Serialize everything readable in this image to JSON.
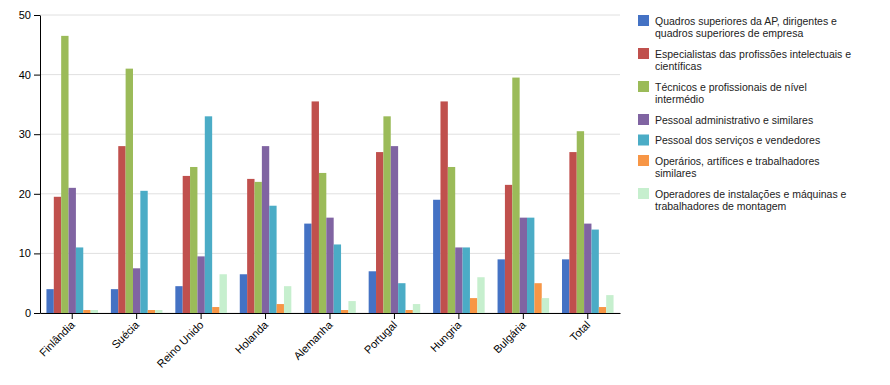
{
  "chart_data": {
    "type": "bar",
    "categories": [
      "Finlândia",
      "Suécia",
      "Reino Unido",
      "Holanda",
      "Alemanha",
      "Portugal",
      "Hungria",
      "Bulgária",
      "Total"
    ],
    "series": [
      {
        "name": "Quadros superiores da AP, dirigentes e\nquadros superiores de empresa",
        "color": "#4472C4",
        "values": [
          4,
          4,
          4.5,
          6.5,
          15,
          7,
          19,
          9,
          9
        ]
      },
      {
        "name": "Especialistas das profissões intelectuais e\ncientíficas",
        "color": "#C0504D",
        "values": [
          19.5,
          28,
          23,
          22.5,
          35.5,
          27,
          35.5,
          21.5,
          27
        ]
      },
      {
        "name": "Técnicos e profissionais de nível\nintermédio",
        "color": "#9BBB59",
        "values": [
          46.5,
          41,
          24.5,
          22,
          23.5,
          33,
          24.5,
          39.5,
          30.5
        ]
      },
      {
        "name": "Pessoal administrativo e similares",
        "color": "#8064A2",
        "values": [
          21,
          7.5,
          9.5,
          28,
          16,
          28,
          11,
          16,
          15
        ]
      },
      {
        "name": "Pessoal dos serviços e vendedores",
        "color": "#4BACC6",
        "values": [
          11,
          20.5,
          33,
          18,
          11.5,
          5,
          11,
          16,
          14
        ]
      },
      {
        "name": "Operários, artífices e trabalhadores\nsimilares",
        "color": "#F79646",
        "values": [
          0.5,
          0.5,
          1,
          1.5,
          0.5,
          0.5,
          2.5,
          5,
          1
        ]
      },
      {
        "name": "Operadores de instalações e máquinas e\ntrabalhadores de montagem",
        "color": "#C6EFCE",
        "values": [
          0.5,
          0.5,
          6.5,
          4.5,
          2,
          1.5,
          6,
          2.5,
          3
        ]
      }
    ],
    "ylim": [
      0,
      50
    ],
    "yticks": [
      0,
      10,
      20,
      30,
      40,
      50
    ],
    "grid": true,
    "legend": "right"
  }
}
